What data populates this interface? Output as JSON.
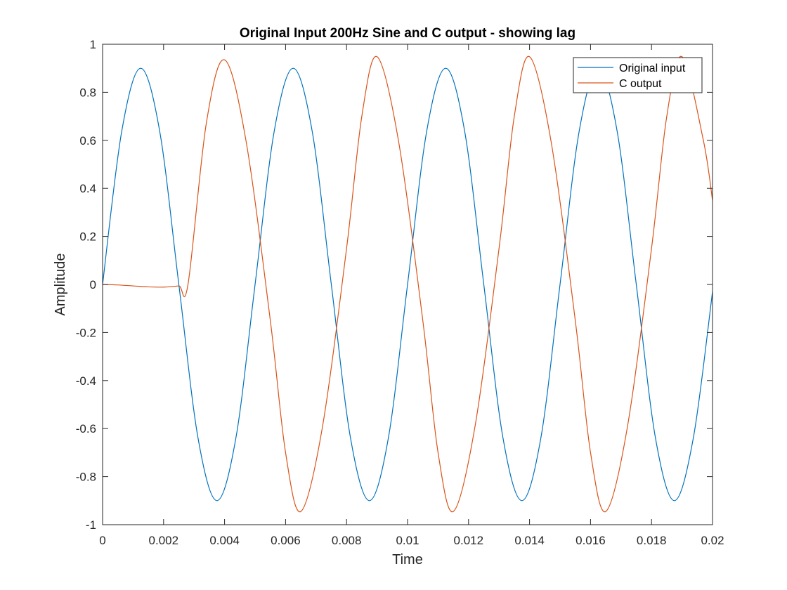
{
  "chart_data": {
    "type": "line",
    "title": "Original Input 200Hz Sine and C output - showing lag",
    "xlabel": "Time",
    "ylabel": "Amplitude",
    "xlim": [
      0,
      0.02
    ],
    "ylim": [
      -1,
      1
    ],
    "xticks": [
      0,
      0.002,
      0.004,
      0.006,
      0.008,
      0.01,
      0.012,
      0.014,
      0.016,
      0.018,
      0.02
    ],
    "xtick_labels": [
      "0",
      "0.002",
      "0.004",
      "0.006",
      "0.008",
      "0.01",
      "0.012",
      "0.014",
      "0.016",
      "0.018",
      "0.02"
    ],
    "yticks": [
      -1,
      -0.8,
      -0.6,
      -0.4,
      -0.2,
      0,
      0.2,
      0.4,
      0.6,
      0.8,
      1
    ],
    "ytick_labels": [
      "-1",
      "-0.8",
      "-0.6",
      "-0.4",
      "-0.2",
      "0",
      "0.2",
      "0.4",
      "0.6",
      "0.8",
      "1"
    ],
    "grid": false,
    "legend_position": "top-right",
    "series": [
      {
        "name": "Original input",
        "color": "#0072BD",
        "points": [
          [
            0,
            0
          ],
          [
            0.000625,
            0.636
          ],
          [
            0.00125,
            0.9
          ],
          [
            0.001875,
            0.636
          ],
          [
            0.0025,
            0
          ],
          [
            0.003125,
            -0.636
          ],
          [
            0.00375,
            -0.9
          ],
          [
            0.004375,
            -0.636
          ],
          [
            0.005,
            0
          ],
          [
            0.005625,
            0.636
          ],
          [
            0.00625,
            0.9
          ],
          [
            0.006875,
            0.636
          ],
          [
            0.0075,
            0
          ],
          [
            0.008125,
            -0.636
          ],
          [
            0.00875,
            -0.9
          ],
          [
            0.009375,
            -0.636
          ],
          [
            0.01,
            0
          ],
          [
            0.010625,
            0.636
          ],
          [
            0.01125,
            0.9
          ],
          [
            0.011875,
            0.636
          ],
          [
            0.0125,
            0
          ],
          [
            0.013125,
            -0.636
          ],
          [
            0.01375,
            -0.9
          ],
          [
            0.014375,
            -0.636
          ],
          [
            0.015,
            0
          ],
          [
            0.015625,
            0.636
          ],
          [
            0.01625,
            0.9
          ],
          [
            0.016875,
            0.636
          ],
          [
            0.0175,
            0
          ],
          [
            0.018125,
            -0.636
          ],
          [
            0.01875,
            -0.9
          ],
          [
            0.019375,
            -0.636
          ],
          [
            0.02,
            -0.03
          ]
        ]
      },
      {
        "name": "C output",
        "color": "#D95319",
        "points": [
          [
            0,
            0
          ],
          [
            0.0005,
            -0.002
          ],
          [
            0.001,
            -0.006
          ],
          [
            0.0015,
            -0.01
          ],
          [
            0.002,
            -0.011
          ],
          [
            0.0025,
            -0.006
          ],
          [
            0.0028,
            0
          ],
          [
            0.0034,
            0.67
          ],
          [
            0.004,
            0.935
          ],
          [
            0.0047,
            0.6
          ],
          [
            0.0055,
            -0.15
          ],
          [
            0.006,
            -0.7
          ],
          [
            0.0065,
            -0.945
          ],
          [
            0.0072,
            -0.6
          ],
          [
            0.008,
            0.15
          ],
          [
            0.0085,
            0.7
          ],
          [
            0.009,
            0.948
          ],
          [
            0.0097,
            0.6
          ],
          [
            0.0105,
            -0.15
          ],
          [
            0.011,
            -0.7
          ],
          [
            0.0115,
            -0.945
          ],
          [
            0.0122,
            -0.6
          ],
          [
            0.013,
            0.15
          ],
          [
            0.0135,
            0.7
          ],
          [
            0.014,
            0.948
          ],
          [
            0.0147,
            0.6
          ],
          [
            0.0155,
            -0.15
          ],
          [
            0.016,
            -0.7
          ],
          [
            0.0165,
            -0.945
          ],
          [
            0.0172,
            -0.6
          ],
          [
            0.018,
            0.15
          ],
          [
            0.0185,
            0.7
          ],
          [
            0.019,
            0.948
          ],
          [
            0.0197,
            0.6
          ],
          [
            0.02,
            0.35
          ]
        ]
      }
    ]
  }
}
